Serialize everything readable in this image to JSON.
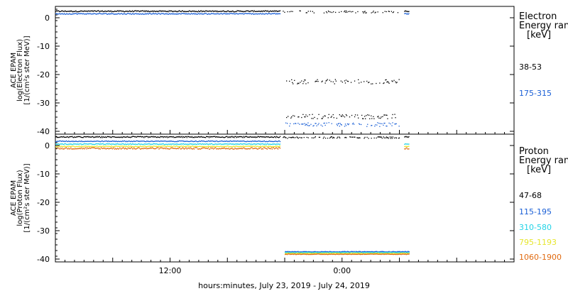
{
  "chart_data": [
    {
      "type": "scatter",
      "instrument": "ACE EPAM",
      "ylabel_lines": [
        "ACE EPAM",
        "log(Electron Flux)",
        "[1/(cm²s ster MeV)]"
      ],
      "ylim": [
        -41,
        4
      ],
      "yticks": [
        0,
        -10,
        -20,
        -30,
        -40
      ],
      "legend": {
        "title_lines": [
          "Electron",
          "Energy ran",
          "[keV]"
        ],
        "entries": [
          {
            "label": "38-53",
            "color": "#000000"
          },
          {
            "label": "175-315",
            "color": "#1a5fd6"
          }
        ]
      },
      "series": [
        {
          "name": "38-53",
          "color": "#000000",
          "segments": [
            {
              "x_start": 0.0,
              "x_end": 23.5,
              "y": 2.3,
              "noise": 0.2,
              "density": 1.0
            },
            {
              "x_start": 23.8,
              "x_end": 36.0,
              "y": 2.1,
              "noise": 0.4,
              "density": 0.3
            },
            {
              "x_start": 24.0,
              "x_end": 36.0,
              "y": -22.5,
              "noise": 0.8,
              "density": 0.45
            },
            {
              "x_start": 24.0,
              "x_end": 36.0,
              "y": -34.8,
              "noise": 0.8,
              "density": 0.45
            },
            {
              "x_start": 36.5,
              "x_end": 37.0,
              "y": 2.3,
              "noise": 0.2,
              "density": 1.0
            }
          ]
        },
        {
          "name": "175-315",
          "color": "#1a5fd6",
          "segments": [
            {
              "x_start": 0.0,
              "x_end": 23.5,
              "y": 1.4,
              "noise": 0.2,
              "density": 1.0
            },
            {
              "x_start": 24.0,
              "x_end": 36.0,
              "y": -37.6,
              "noise": 0.7,
              "density": 0.5
            },
            {
              "x_start": 36.5,
              "x_end": 37.0,
              "y": 1.4,
              "noise": 0.2,
              "density": 1.0
            }
          ]
        }
      ]
    },
    {
      "type": "scatter",
      "instrument": "ACE EPAM",
      "ylabel_lines": [
        "ACE EPAM",
        "log(Proton Flux)",
        "[1/(cm²s ster MeV)]"
      ],
      "ylim": [
        -41,
        4
      ],
      "yticks": [
        0,
        -10,
        -20,
        -30,
        -40
      ],
      "legend": {
        "title_lines": [
          "Proton",
          "Energy ran",
          "[keV]"
        ],
        "entries": [
          {
            "label": "47-68",
            "color": "#000000"
          },
          {
            "label": "115-195",
            "color": "#1a5fd6"
          },
          {
            "label": "310-580",
            "color": "#22d3e6"
          },
          {
            "label": "795-1193",
            "color": "#e6e62e"
          },
          {
            "label": "1060-1900",
            "color": "#e06a10"
          }
        ]
      },
      "series": [
        {
          "name": "47-68",
          "color": "#000000",
          "segments": [
            {
              "x_start": 0.0,
              "x_end": 23.5,
              "y": 3.0,
              "noise": 0.2,
              "density": 1.0
            },
            {
              "x_start": 23.8,
              "x_end": 36.0,
              "y": 2.8,
              "noise": 0.3,
              "density": 0.5
            },
            {
              "x_start": 36.5,
              "x_end": 37.0,
              "y": 3.0,
              "noise": 0.2,
              "density": 1.0
            }
          ]
        },
        {
          "name": "115-195",
          "color": "#1a5fd6",
          "segments": [
            {
              "x_start": 0.0,
              "x_end": 23.5,
              "y": 1.5,
              "noise": 0.15,
              "density": 1.0
            },
            {
              "x_start": 24.0,
              "x_end": 37.0,
              "y": -37.4,
              "noise": 0.1,
              "density": 1.0
            }
          ]
        },
        {
          "name": "310-580",
          "color": "#22d3e6",
          "segments": [
            {
              "x_start": 0.0,
              "x_end": 23.5,
              "y": 0.5,
              "noise": 0.15,
              "density": 1.0
            },
            {
              "x_start": 24.0,
              "x_end": 37.0,
              "y": -37.7,
              "noise": 0.1,
              "density": 1.0
            },
            {
              "x_start": 36.5,
              "x_end": 37.0,
              "y": 0.5,
              "noise": 0.15,
              "density": 1.0
            }
          ]
        },
        {
          "name": "795-1193",
          "color": "#e6e62e",
          "segments": [
            {
              "x_start": 0.0,
              "x_end": 23.5,
              "y": -0.3,
              "noise": 0.15,
              "density": 1.0
            },
            {
              "x_start": 24.0,
              "x_end": 37.0,
              "y": -38.0,
              "noise": 0.1,
              "density": 1.0
            },
            {
              "x_start": 36.5,
              "x_end": 37.0,
              "y": -0.3,
              "noise": 0.15,
              "density": 1.0
            }
          ]
        },
        {
          "name": "1060-1900",
          "color": "#e06a10",
          "segments": [
            {
              "x_start": 0.0,
              "x_end": 23.5,
              "y": -1.0,
              "noise": 0.3,
              "density": 1.0
            },
            {
              "x_start": 24.0,
              "x_end": 37.0,
              "y": -38.3,
              "noise": 0.1,
              "density": 1.0
            },
            {
              "x_start": 36.5,
              "x_end": 37.0,
              "y": -1.0,
              "noise": 0.3,
              "density": 1.0
            }
          ]
        }
      ]
    }
  ],
  "x_axis": {
    "label": "hours:minutes, July 23, 2019 - July 24, 2019",
    "xlim": [
      0,
      48
    ],
    "tick_labels": [
      {
        "x": 12,
        "label": "12:00"
      },
      {
        "x": 30,
        "label": "0:00"
      }
    ],
    "major_ticks": [
      0,
      6,
      12,
      18,
      24,
      30,
      36,
      42,
      48
    ],
    "minor_ticks": [
      1,
      2,
      3,
      4,
      5,
      7,
      8,
      9,
      10,
      11,
      13,
      14,
      15,
      16,
      17,
      19,
      20,
      21,
      22,
      23,
      25,
      26,
      27,
      28,
      29,
      31,
      32,
      33,
      34,
      35,
      37,
      38,
      39,
      40,
      41,
      43,
      44,
      45,
      46,
      47
    ]
  }
}
